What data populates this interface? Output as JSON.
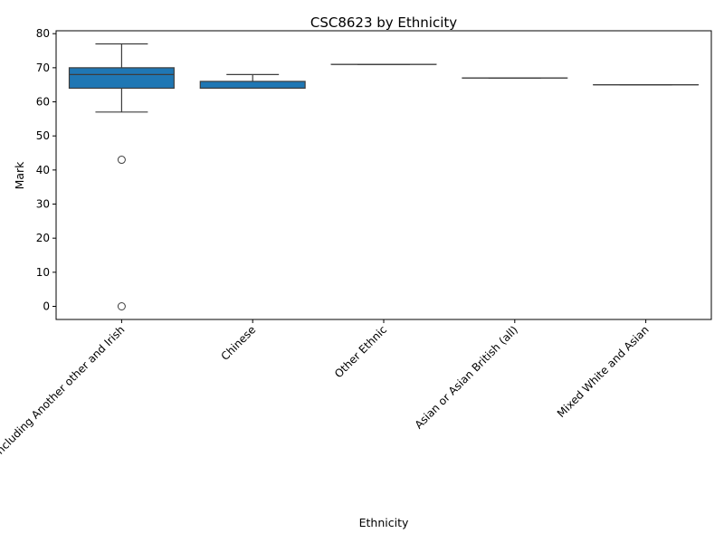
{
  "chart_data": {
    "type": "box",
    "title": "CSC8623 by Ethnicity",
    "xlabel": "Ethnicity",
    "ylabel": "Mark",
    "ylim": [
      -3.85,
      80.85
    ],
    "yticks": [
      0,
      10,
      20,
      30,
      40,
      50,
      60,
      70,
      80
    ],
    "grid": false,
    "box_color": "#1f77b4",
    "line_color": "#3d3d3d",
    "categories": [
      "White including Another other and Irish",
      "Chinese",
      "Other Ethnic",
      "Asian or Asian British (all)",
      "Mixed White and Asian"
    ],
    "boxes": [
      {
        "category": "White including Another other and Irish",
        "whisker_low": 57,
        "q1": 64,
        "median": 68,
        "q3": 70,
        "whisker_high": 77,
        "outliers": [
          43,
          0
        ]
      },
      {
        "category": "Chinese",
        "whisker_low": 64,
        "q1": 64,
        "median": 64,
        "q3": 66,
        "whisker_high": 68,
        "outliers": []
      },
      {
        "category": "Other Ethnic",
        "whisker_low": 71,
        "q1": 71,
        "median": 71,
        "q3": 71,
        "whisker_high": 71,
        "outliers": []
      },
      {
        "category": "Asian or Asian British (all)",
        "whisker_low": 67,
        "q1": 67,
        "median": 67,
        "q3": 67,
        "whisker_high": 67,
        "outliers": []
      },
      {
        "category": "Mixed White and Asian",
        "whisker_low": 65,
        "q1": 65,
        "median": 65,
        "q3": 65,
        "whisker_high": 65,
        "outliers": []
      }
    ]
  }
}
